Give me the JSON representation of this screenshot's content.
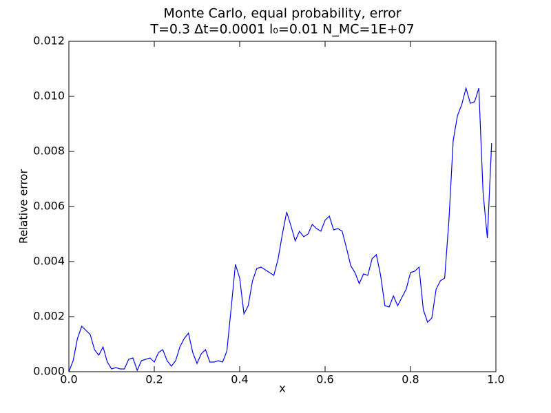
{
  "chart_data": {
    "type": "line",
    "title": "Monte Carlo, equal probability, error",
    "subtitle": "T=0.3 Δt=0.0001 l₀=0.01 N_MC=1E+07",
    "x_label": "x",
    "y_label": "Relative error",
    "x": [
      0,
      0.01,
      0.02,
      0.03,
      0.04,
      0.05,
      0.06,
      0.07,
      0.08,
      0.09,
      0.1,
      0.11,
      0.12,
      0.13,
      0.14,
      0.15,
      0.16,
      0.17,
      0.18,
      0.19,
      0.2,
      0.21,
      0.22,
      0.23,
      0.24,
      0.25,
      0.26,
      0.27,
      0.28,
      0.29,
      0.3,
      0.31,
      0.32,
      0.33,
      0.34,
      0.35,
      0.36,
      0.37,
      0.38,
      0.39,
      0.4,
      0.41,
      0.42,
      0.43,
      0.44,
      0.45,
      0.46,
      0.47,
      0.48,
      0.49,
      0.5,
      0.51,
      0.52,
      0.53,
      0.54,
      0.55,
      0.56,
      0.57,
      0.58,
      0.59,
      0.6,
      0.61,
      0.62,
      0.63,
      0.64,
      0.65,
      0.66,
      0.67,
      0.68,
      0.69,
      0.7,
      0.71,
      0.72,
      0.73,
      0.74,
      0.75,
      0.76,
      0.77,
      0.78,
      0.79,
      0.8,
      0.81,
      0.82,
      0.83,
      0.84,
      0.85,
      0.86,
      0.87,
      0.88,
      0.89,
      0.9,
      0.91,
      0.92,
      0.93,
      0.94,
      0.95,
      0.96,
      0.97,
      0.98,
      0.99
    ],
    "series": [
      {
        "color": "#0000ff",
        "values": [
          0,
          0.0004,
          0.0012,
          0.00165,
          0.0015,
          0.00135,
          0.0008,
          0.0006,
          0.0009,
          0.00035,
          0.0001,
          0.00015,
          0.0001,
          0.0001,
          0.00045,
          0.0005,
          5e-05,
          0.0004,
          0.00045,
          0.0005,
          0.00035,
          0.0007,
          0.0008,
          0.0004,
          0.0002,
          0.0004,
          0.0009,
          0.0012,
          0.0014,
          0.0007,
          0.0003,
          0.00065,
          0.0008,
          0.00035,
          0.00035,
          0.0004,
          0.00035,
          0.00075,
          0.0023,
          0.0039,
          0.0034,
          0.0021,
          0.0024,
          0.0033,
          0.00375,
          0.0038,
          0.0037,
          0.0036,
          0.0035,
          0.0041,
          0.005,
          0.0058,
          0.0053,
          0.00475,
          0.0051,
          0.0049,
          0.005,
          0.00535,
          0.0052,
          0.0051,
          0.0055,
          0.00565,
          0.00515,
          0.0052,
          0.0051,
          0.0045,
          0.00385,
          0.0036,
          0.0032,
          0.00355,
          0.0035,
          0.0041,
          0.00425,
          0.0035,
          0.0024,
          0.00235,
          0.00275,
          0.0024,
          0.0027,
          0.003,
          0.0036,
          0.00365,
          0.0038,
          0.00225,
          0.0018,
          0.00195,
          0.003,
          0.0033,
          0.0034,
          0.0055,
          0.0084,
          0.0093,
          0.0097,
          0.0103,
          0.00975,
          0.0098,
          0.0103,
          0.0065,
          0.00485,
          0.0083
        ]
      }
    ],
    "xlim": [
      0,
      1
    ],
    "ylim": [
      0,
      0.012
    ],
    "xticks": [
      {
        "value": 0,
        "label": "0.0"
      },
      {
        "value": 0.2,
        "label": "0.2"
      },
      {
        "value": 0.4,
        "label": "0.4"
      },
      {
        "value": 0.6,
        "label": "0.6"
      },
      {
        "value": 0.8,
        "label": "0.8"
      },
      {
        "value": 1,
        "label": "1.0"
      }
    ],
    "yticks": [
      {
        "value": 0,
        "label": "0.000"
      },
      {
        "value": 0.002,
        "label": "0.002"
      },
      {
        "value": 0.004,
        "label": "0.004"
      },
      {
        "value": 0.006,
        "label": "0.006"
      },
      {
        "value": 0.008,
        "label": "0.008"
      },
      {
        "value": 0.01,
        "label": "0.010"
      },
      {
        "value": 0.012,
        "label": "0.012"
      }
    ]
  }
}
